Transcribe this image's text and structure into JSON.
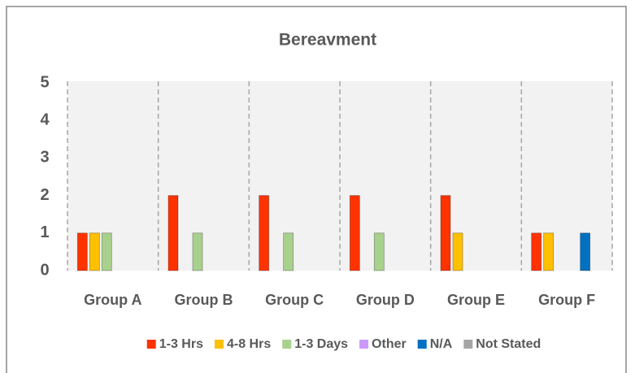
{
  "chart_data": {
    "type": "bar",
    "title": "Bereavment",
    "categories": [
      "Group A",
      "Group B",
      "Group C",
      "Group D",
      "Group E",
      "Group F"
    ],
    "series": [
      {
        "name": "1-3 Hrs",
        "color": "#ff3300",
        "values": [
          1,
          2,
          2,
          2,
          2,
          1
        ]
      },
      {
        "name": "4-8 Hrs",
        "color": "#ffc000",
        "values": [
          1,
          0,
          0,
          0,
          1,
          1
        ]
      },
      {
        "name": "1-3 Days",
        "color": "#a9d18e",
        "values": [
          1,
          1,
          1,
          1,
          0,
          0
        ]
      },
      {
        "name": "Other",
        "color": "#cc99ff",
        "values": [
          0,
          0,
          0,
          0,
          0,
          0
        ]
      },
      {
        "name": "N/A",
        "color": "#0070c0",
        "values": [
          0,
          0,
          0,
          0,
          0,
          1
        ]
      },
      {
        "name": "Not Stated",
        "color": "#a5a5a5",
        "values": [
          0,
          0,
          0,
          0,
          0,
          0
        ]
      }
    ],
    "ylim": [
      0,
      5
    ],
    "yticks": [
      0,
      1,
      2,
      3,
      4,
      5
    ],
    "legend": "bottom"
  }
}
